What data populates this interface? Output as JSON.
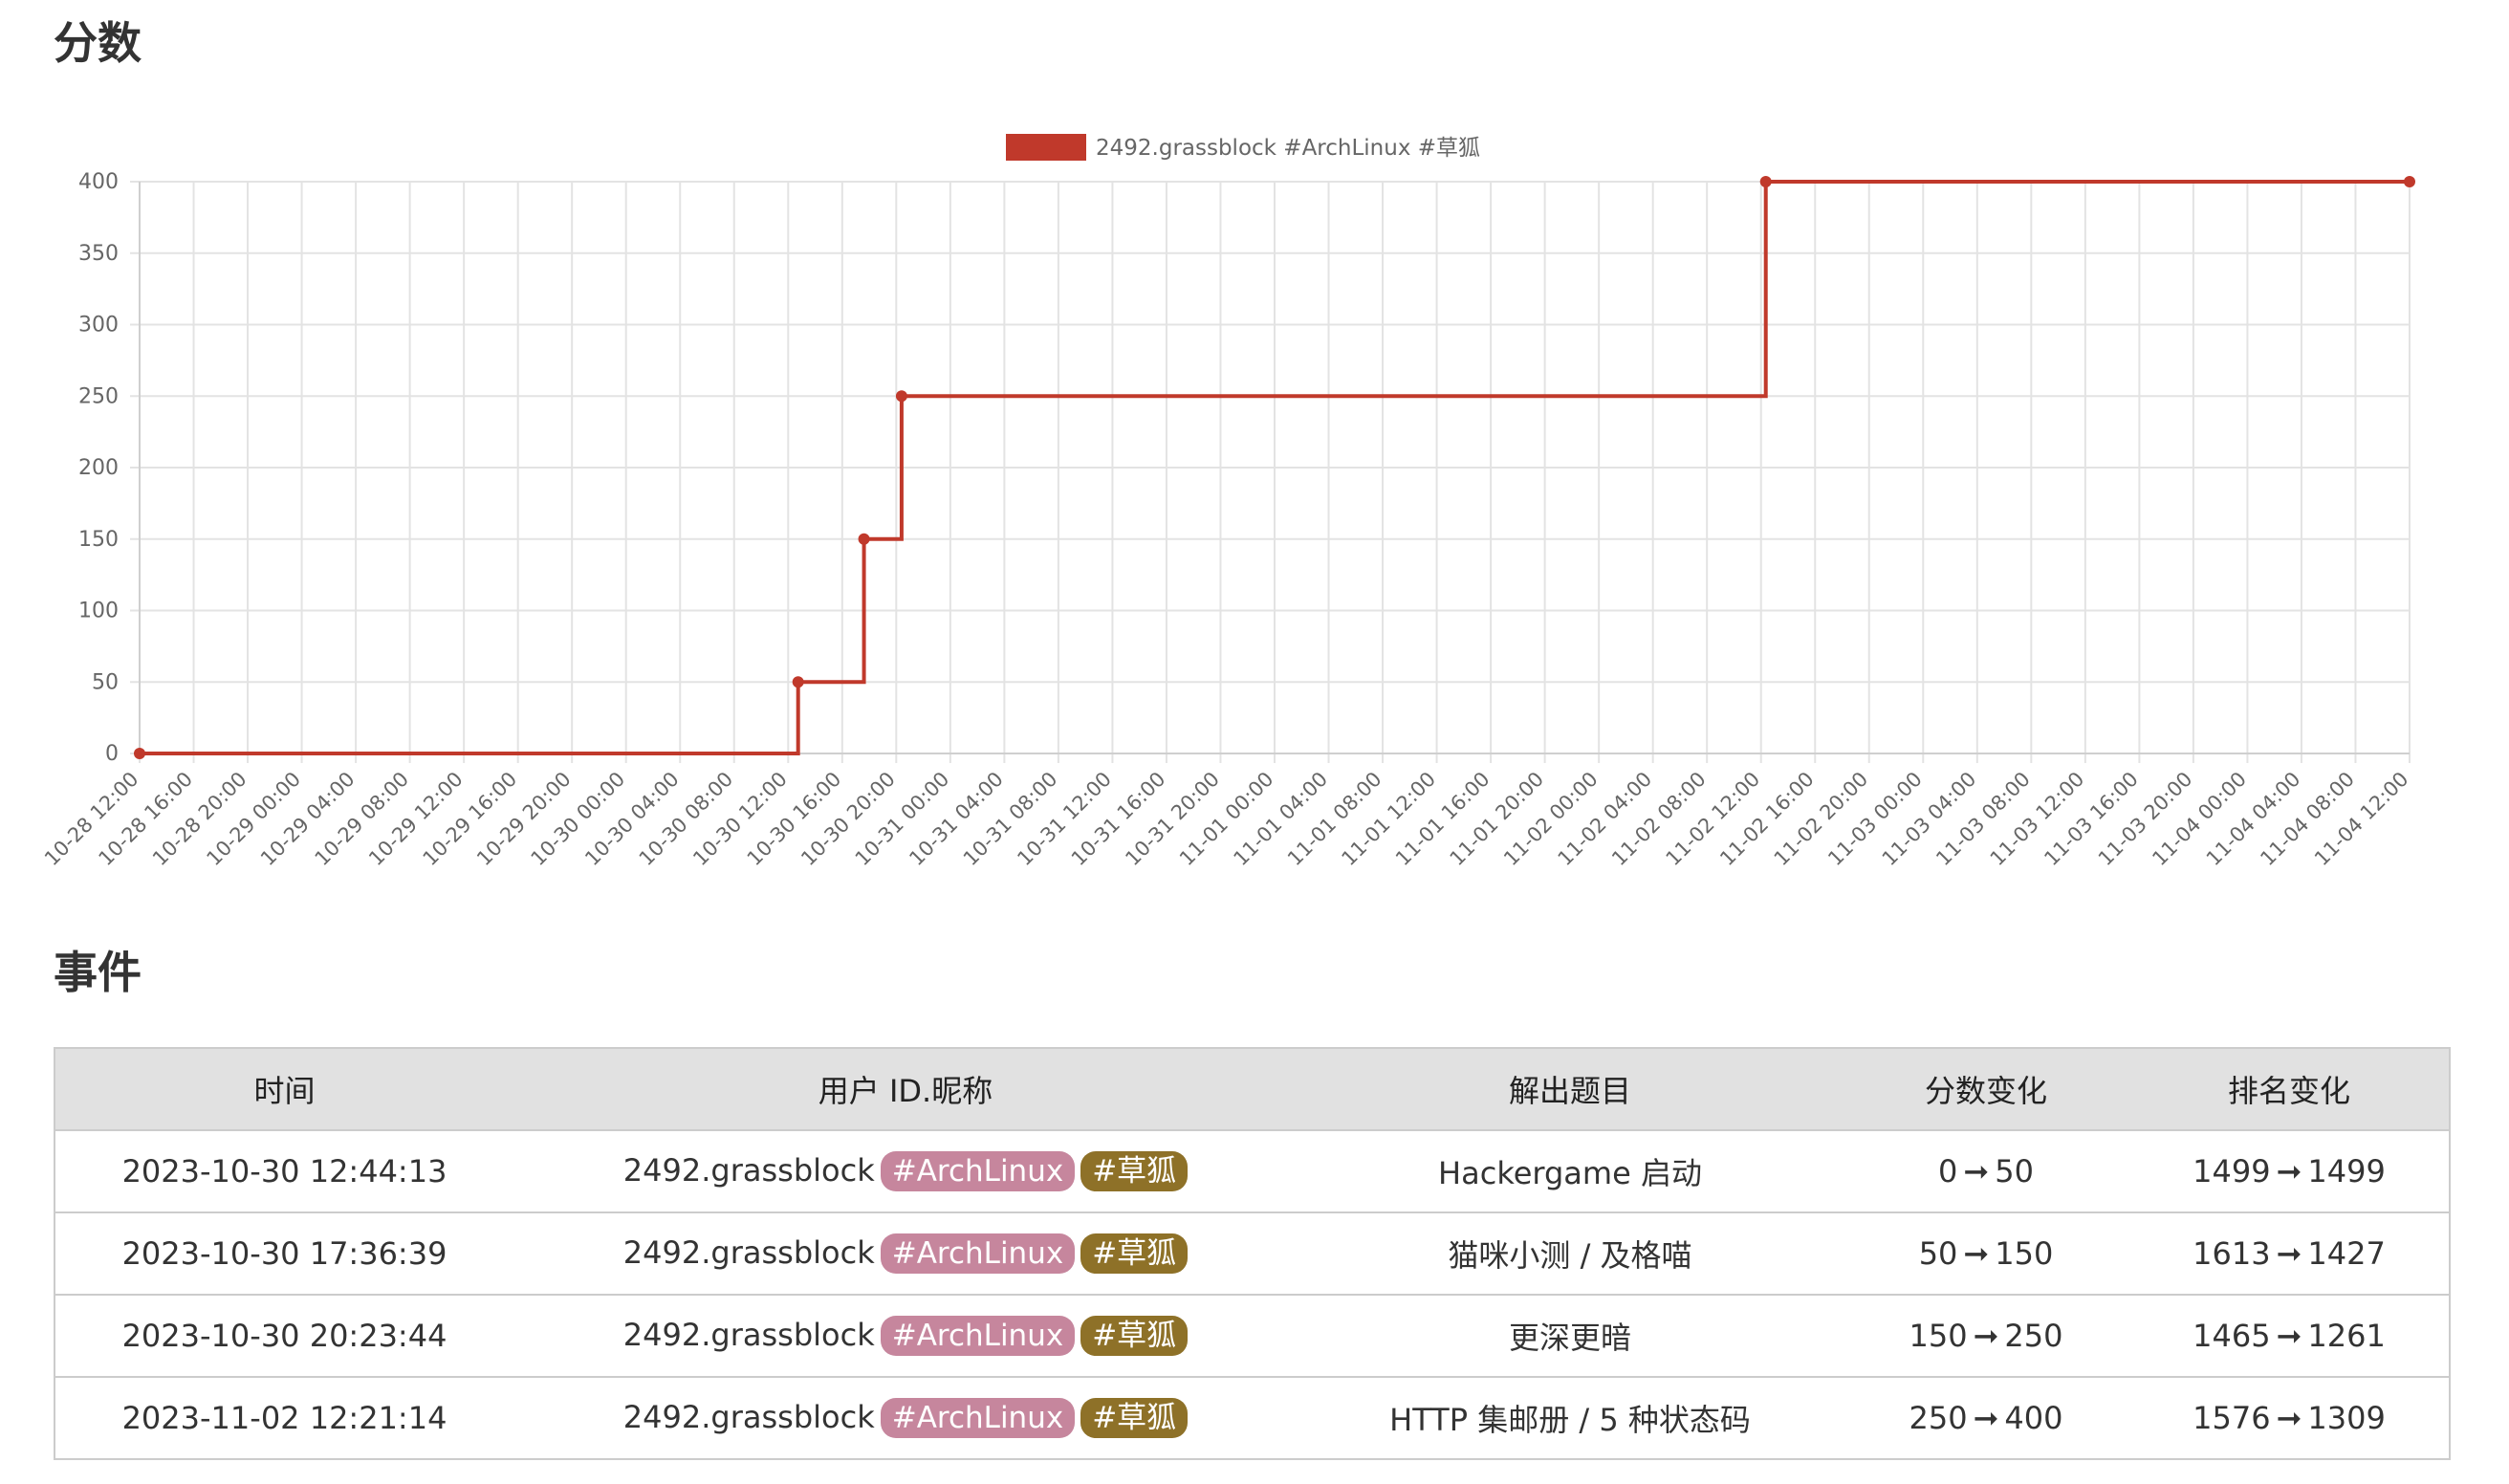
{
  "headings": {
    "score": "分数",
    "events": "事件"
  },
  "chart_data": {
    "type": "line",
    "stepped": true,
    "legend": {
      "position": "top",
      "label": "2492.grassblock #ArchLinux #草狐",
      "color": "#c0392b"
    },
    "x_tick_labels": [
      "10-28 12:00",
      "10-28 16:00",
      "10-28 20:00",
      "10-29 00:00",
      "10-29 04:00",
      "10-29 08:00",
      "10-29 12:00",
      "10-29 16:00",
      "10-29 20:00",
      "10-30 00:00",
      "10-30 04:00",
      "10-30 08:00",
      "10-30 12:00",
      "10-30 16:00",
      "10-30 20:00",
      "10-31 00:00",
      "10-31 04:00",
      "10-31 08:00",
      "10-31 12:00",
      "10-31 16:00",
      "10-31 20:00",
      "11-01 00:00",
      "11-01 04:00",
      "11-01 08:00",
      "11-01 12:00",
      "11-01 16:00",
      "11-01 20:00",
      "11-02 00:00",
      "11-02 04:00",
      "11-02 08:00",
      "11-02 12:00",
      "11-02 16:00",
      "11-02 20:00",
      "11-03 00:00",
      "11-03 04:00",
      "11-03 08:00",
      "11-03 12:00",
      "11-03 16:00",
      "11-03 20:00",
      "11-04 00:00",
      "11-04 04:00",
      "11-04 08:00",
      "11-04 12:00"
    ],
    "x_range": [
      "2023-10-28 12:00",
      "2023-11-04 12:00"
    ],
    "y_range": [
      0,
      400
    ],
    "y_ticks": [
      0,
      50,
      100,
      150,
      200,
      250,
      300,
      350,
      400
    ],
    "grid": true,
    "series": [
      {
        "name": "2492.grassblock #ArchLinux #草狐",
        "color": "#c0392b",
        "points": [
          {
            "x": "2023-10-28 12:00:00",
            "y": 0
          },
          {
            "x": "2023-10-30 12:44:13",
            "y": 50
          },
          {
            "x": "2023-10-30 17:36:39",
            "y": 150
          },
          {
            "x": "2023-10-30 20:23:44",
            "y": 250
          },
          {
            "x": "2023-11-02 12:21:14",
            "y": 400
          },
          {
            "x": "2023-11-04 12:00:00",
            "y": 400
          }
        ]
      }
    ]
  },
  "events": {
    "columns": [
      "时间",
      "用户 ID.昵称",
      "解出题目",
      "分数变化",
      "排名变化"
    ],
    "arrow": "➞",
    "rows": [
      {
        "time": "2023-10-30 12:44:13",
        "user": "2492.grassblock",
        "tag_os": "#ArchLinux",
        "tag_browser": "#草狐",
        "challenge": "Hackergame 启动",
        "score_from": "0",
        "score_to": "50",
        "rank_from": "1499",
        "rank_to": "1499"
      },
      {
        "time": "2023-10-30 17:36:39",
        "user": "2492.grassblock",
        "tag_os": "#ArchLinux",
        "tag_browser": "#草狐",
        "challenge": "猫咪小测 / 及格喵",
        "score_from": "50",
        "score_to": "150",
        "rank_from": "1613",
        "rank_to": "1427"
      },
      {
        "time": "2023-10-30 20:23:44",
        "user": "2492.grassblock",
        "tag_os": "#ArchLinux",
        "tag_browser": "#草狐",
        "challenge": "更深更暗",
        "score_from": "150",
        "score_to": "250",
        "rank_from": "1465",
        "rank_to": "1261"
      },
      {
        "time": "2023-11-02 12:21:14",
        "user": "2492.grassblock",
        "tag_os": "#ArchLinux",
        "tag_browser": "#草狐",
        "challenge": "HTTP 集邮册 / 5 种状态码",
        "score_from": "250",
        "score_to": "400",
        "rank_from": "1576",
        "rank_to": "1309"
      }
    ]
  }
}
